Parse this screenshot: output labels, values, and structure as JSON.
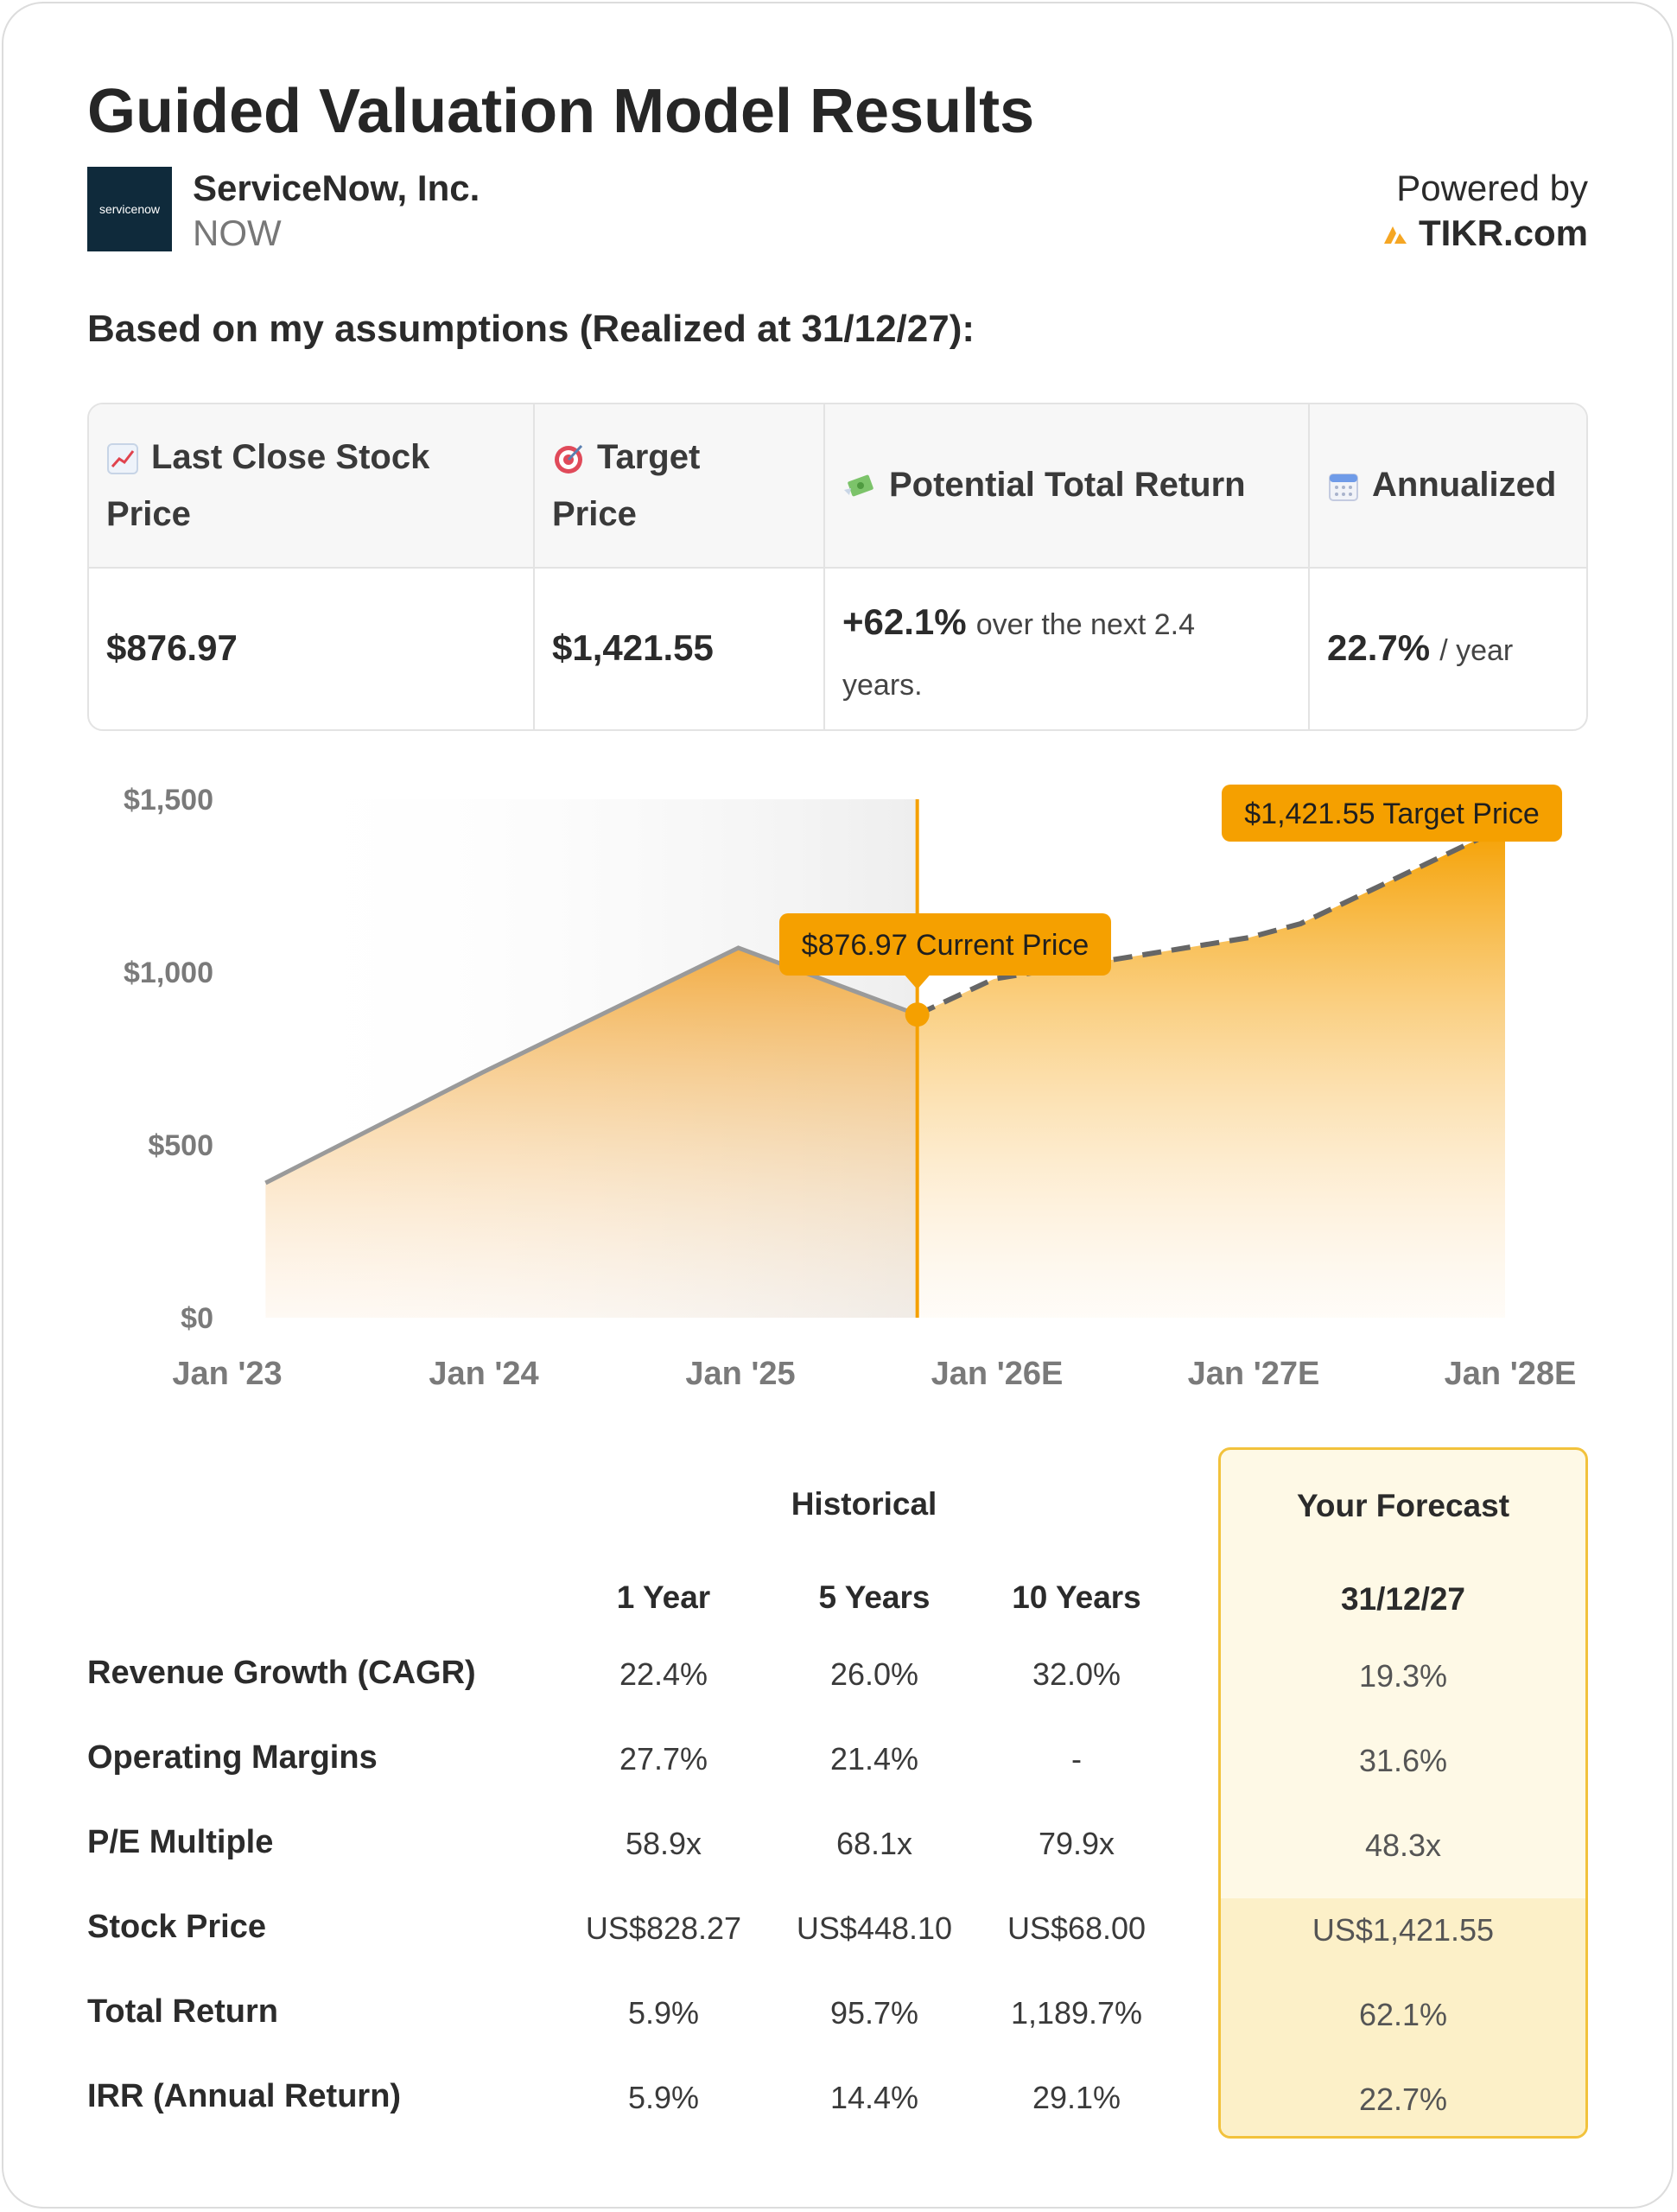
{
  "title": "Guided Valuation Model Results",
  "company": {
    "logo_text": "servicenow",
    "name": "ServiceNow, Inc.",
    "ticker": "NOW"
  },
  "powered": {
    "label": "Powered by",
    "brand": "TIKR.com",
    "brand_color": "#f5a623"
  },
  "assumption_line": "Based on my assumptions (Realized at 31/12/27):",
  "summary": {
    "headers": [
      {
        "icon": "chart-increasing-icon",
        "label": "Last Close Stock Price",
        "line1": "Last Close Stock",
        "line2": "Price"
      },
      {
        "icon": "target-icon",
        "label": "Target Price",
        "line1": "Target",
        "line2": "Price"
      },
      {
        "icon": "money-with-wings-icon",
        "label": "Potential Total Return"
      },
      {
        "icon": "calendar-icon",
        "label": "Annualized"
      }
    ],
    "values": {
      "last_close": "$876.97",
      "target": "$1,421.55",
      "return_value": "+62.1%",
      "return_suffix_1": "over the next 2.4",
      "return_suffix_2": "years.",
      "annualized_value": "22.7%",
      "annualized_suffix": "/ year"
    }
  },
  "chart_data": {
    "type": "area",
    "x_labels": [
      "Jan '23",
      "Jan '24",
      "Jan '25",
      "Jan '26E",
      "Jan '27E",
      "Jan '28E"
    ],
    "y_ticks": [
      "$0",
      "$500",
      "$1,000",
      "$1,500"
    ],
    "ylim": [
      0,
      1500
    ],
    "xlim": [
      2023.0,
      2028.0
    ],
    "historical": {
      "x": [
        2023.15,
        2024.0,
        2025.0,
        2025.7
      ],
      "y": [
        390,
        710,
        1070,
        877
      ]
    },
    "forecast": {
      "x": [
        2025.7,
        2026.0,
        2027.0,
        2027.2,
        2028.0
      ],
      "y": [
        877,
        980,
        1100,
        1140,
        1421.55
      ]
    },
    "current_x": 2025.7,
    "annotations": {
      "current": "$876.97 Current Price",
      "target": "$1,421.55 Target Price"
    },
    "colors": {
      "accent": "#f5a000",
      "historical_line": "#9a9a9a",
      "forecast_line": "#666666",
      "shade": "#eeeeee"
    }
  },
  "metrics": {
    "group_historical": "Historical",
    "group_forecast": "Your Forecast",
    "columns": [
      "1 Year",
      "5 Years",
      "10 Years"
    ],
    "forecast_date": "31/12/27",
    "rows": [
      {
        "label": "Revenue Growth (CAGR)",
        "values": [
          "22.4%",
          "26.0%",
          "32.0%"
        ],
        "forecast": "19.3%"
      },
      {
        "label": "Operating Margins",
        "values": [
          "27.7%",
          "21.4%",
          "-"
        ],
        "forecast": "31.6%"
      },
      {
        "label": "P/E Multiple",
        "values": [
          "58.9x",
          "68.1x",
          "79.9x"
        ],
        "forecast": "48.3x"
      },
      {
        "label": "Stock Price",
        "values": [
          "US$828.27",
          "US$448.10",
          "US$68.00"
        ],
        "forecast": "US$1,421.55"
      },
      {
        "label": "Total Return",
        "values": [
          "5.9%",
          "95.7%",
          "1,189.7%"
        ],
        "forecast": "62.1%"
      },
      {
        "label": "IRR (Annual Return)",
        "values": [
          "5.9%",
          "14.4%",
          "29.1%"
        ],
        "forecast": "22.7%"
      }
    ]
  }
}
